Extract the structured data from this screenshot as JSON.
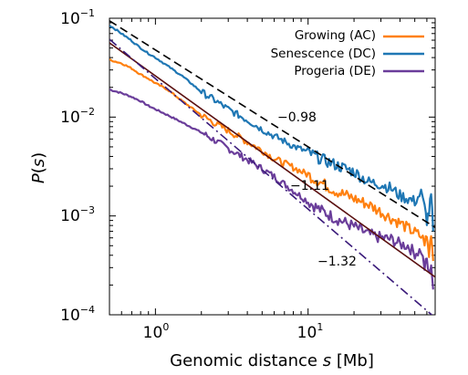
{
  "chart_data": {
    "type": "line",
    "x_scale": "log",
    "y_scale": "log",
    "xlim": [
      0.5,
      68
    ],
    "ylim": [
      0.0001,
      0.1
    ],
    "xlabel_main": "Genomic distance ",
    "xlabel_var": "s",
    "xlabel_unit": " [Mb]",
    "ylabel_fn": "P",
    "ylabel_open": "(",
    "ylabel_var": "s",
    "ylabel_close": ")",
    "x_ticks": [
      {
        "value": 1,
        "base": "10",
        "exp": "0"
      },
      {
        "value": 10,
        "base": "10",
        "exp": "1"
      }
    ],
    "y_ticks": [
      {
        "value": 0.1,
        "base": "10",
        "exp": "−1"
      },
      {
        "value": 0.01,
        "base": "10",
        "exp": "−2"
      },
      {
        "value": 0.001,
        "base": "10",
        "exp": "−3"
      },
      {
        "value": 0.0001,
        "base": "10",
        "exp": "−4"
      }
    ],
    "legend_position": "top-right",
    "series": [
      {
        "name": "Growing (AC)",
        "color": "#ff8010",
        "points": [
          [
            0.5,
            0.038
          ],
          [
            0.6,
            0.035
          ],
          [
            0.7,
            0.031
          ],
          [
            0.8,
            0.027
          ],
          [
            0.9,
            0.0245
          ],
          [
            1.0,
            0.022
          ],
          [
            1.2,
            0.019
          ],
          [
            1.5,
            0.0145
          ],
          [
            2,
            0.0105
          ],
          [
            2.5,
            0.0085
          ],
          [
            3,
            0.0073
          ],
          [
            4,
            0.0056
          ],
          [
            5,
            0.0046
          ],
          [
            6,
            0.0038
          ],
          [
            7,
            0.0034
          ],
          [
            8,
            0.0031
          ],
          [
            10,
            0.0026
          ],
          [
            12,
            0.0022
          ],
          [
            15,
            0.0018
          ],
          [
            20,
            0.0015
          ],
          [
            25,
            0.0013
          ],
          [
            30,
            0.0011
          ],
          [
            35,
            0.00095
          ],
          [
            40,
            0.00085
          ],
          [
            45,
            0.00075
          ],
          [
            50,
            0.00068
          ],
          [
            55,
            0.00062
          ],
          [
            58,
            0.00055
          ],
          [
            60,
            0.0006
          ],
          [
            62,
            0.0004
          ],
          [
            64,
            0.0007
          ],
          [
            66,
            0.00035
          ]
        ]
      },
      {
        "name": "Senescence (DC)",
        "color": "#1f77b4",
        "points": [
          [
            0.5,
            0.085
          ],
          [
            0.6,
            0.07
          ],
          [
            0.7,
            0.059
          ],
          [
            0.8,
            0.05
          ],
          [
            0.9,
            0.044
          ],
          [
            1.0,
            0.04
          ],
          [
            1.2,
            0.033
          ],
          [
            1.5,
            0.026
          ],
          [
            2,
            0.018
          ],
          [
            2.5,
            0.0145
          ],
          [
            3,
            0.012
          ],
          [
            4,
            0.0093
          ],
          [
            5,
            0.0075
          ],
          [
            6,
            0.0064
          ],
          [
            7,
            0.0057
          ],
          [
            8,
            0.0051
          ],
          [
            10,
            0.0044
          ],
          [
            12,
            0.0038
          ],
          [
            15,
            0.0033
          ],
          [
            20,
            0.0028
          ],
          [
            25,
            0.0022
          ],
          [
            30,
            0.0021
          ],
          [
            35,
            0.0019
          ],
          [
            40,
            0.0016
          ],
          [
            45,
            0.0015
          ],
          [
            50,
            0.0014
          ],
          [
            55,
            0.0017
          ],
          [
            58,
            0.0012
          ],
          [
            60,
            0.0009
          ],
          [
            62,
            0.0011
          ],
          [
            64,
            0.0016
          ],
          [
            66,
            0.0007
          ]
        ]
      },
      {
        "name": "Progeria (DE)",
        "color": "#6a3d9a",
        "points": [
          [
            0.5,
            0.019
          ],
          [
            0.6,
            0.0175
          ],
          [
            0.7,
            0.016
          ],
          [
            0.8,
            0.0145
          ],
          [
            0.9,
            0.013
          ],
          [
            1.0,
            0.012
          ],
          [
            1.2,
            0.0105
          ],
          [
            1.5,
            0.0088
          ],
          [
            2,
            0.007
          ],
          [
            2.5,
            0.0057
          ],
          [
            3,
            0.0048
          ],
          [
            4,
            0.0037
          ],
          [
            5,
            0.003
          ],
          [
            6,
            0.0025
          ],
          [
            7,
            0.0021
          ],
          [
            8,
            0.0018
          ],
          [
            10,
            0.0014
          ],
          [
            12,
            0.00115
          ],
          [
            15,
            0.00095
          ],
          [
            20,
            0.00078
          ],
          [
            25,
            0.00065
          ],
          [
            30,
            0.0006
          ],
          [
            35,
            0.00058
          ],
          [
            40,
            0.00052
          ],
          [
            45,
            0.0005
          ],
          [
            50,
            0.00042
          ],
          [
            55,
            0.00045
          ],
          [
            58,
            0.0003
          ],
          [
            60,
            0.00036
          ],
          [
            62,
            0.00025
          ],
          [
            64,
            0.00033
          ],
          [
            66,
            0.00018
          ]
        ]
      }
    ],
    "fits": [
      {
        "label": "−0.98",
        "slope": -0.98,
        "x": [
          0.5,
          68
        ],
        "y0_at_x1": 0.0478,
        "color": "#000000",
        "dash": "dashed",
        "label_at_x": 6.1,
        "label_at_y": 0.0097
      },
      {
        "label": "−1.11",
        "slope": -1.11,
        "x": [
          0.5,
          68
        ],
        "y0_at_x1": 0.0261,
        "color": "#5a1010",
        "dash": "solid",
        "label_at_x": 9.5,
        "label_at_y": 0.00115
      },
      {
        "label": "−1.32",
        "slope": -1.32,
        "x": [
          0.5,
          68
        ],
        "y0_at_x1": 0.0245,
        "color": "#3a1a7a",
        "dash": "dashdot",
        "label_at_x": 16.2,
        "label_at_y": 0.00022
      }
    ]
  }
}
